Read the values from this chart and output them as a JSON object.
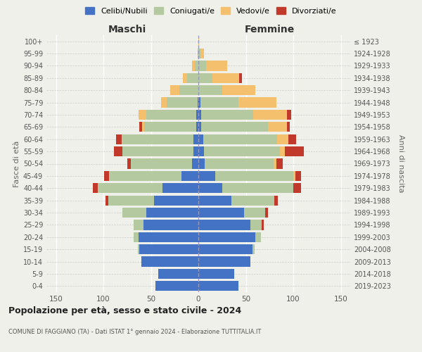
{
  "age_groups": [
    "0-4",
    "5-9",
    "10-14",
    "15-19",
    "20-24",
    "25-29",
    "30-34",
    "35-39",
    "40-44",
    "45-49",
    "50-54",
    "55-59",
    "60-64",
    "65-69",
    "70-74",
    "75-79",
    "80-84",
    "85-89",
    "90-94",
    "95-99",
    "100+"
  ],
  "birth_years": [
    "2019-2023",
    "2014-2018",
    "2009-2013",
    "2004-2008",
    "1999-2003",
    "1994-1998",
    "1989-1993",
    "1984-1988",
    "1979-1983",
    "1974-1978",
    "1969-1973",
    "1964-1968",
    "1959-1963",
    "1954-1958",
    "1949-1953",
    "1944-1948",
    "1939-1943",
    "1934-1938",
    "1929-1933",
    "1924-1928",
    "≤ 1923"
  ],
  "male_celibi": [
    45,
    42,
    60,
    62,
    63,
    58,
    55,
    47,
    38,
    18,
    7,
    5,
    5,
    2,
    2,
    1,
    0,
    0,
    0,
    0,
    0
  ],
  "male_coniugati": [
    0,
    0,
    0,
    2,
    5,
    10,
    25,
    48,
    68,
    76,
    64,
    75,
    75,
    55,
    53,
    32,
    20,
    12,
    4,
    1,
    0
  ],
  "male_vedovi": [
    0,
    0,
    0,
    0,
    0,
    0,
    0,
    0,
    0,
    0,
    0,
    0,
    1,
    2,
    8,
    6,
    10,
    4,
    3,
    0,
    0
  ],
  "male_divorziati": [
    0,
    0,
    0,
    0,
    0,
    0,
    0,
    3,
    5,
    5,
    4,
    9,
    6,
    3,
    0,
    0,
    0,
    0,
    0,
    0,
    0
  ],
  "female_celibi": [
    42,
    38,
    55,
    57,
    60,
    55,
    48,
    35,
    25,
    18,
    7,
    6,
    5,
    3,
    3,
    2,
    0,
    0,
    0,
    0,
    0
  ],
  "female_coniugati": [
    0,
    0,
    0,
    2,
    6,
    12,
    22,
    45,
    75,
    82,
    72,
    80,
    78,
    70,
    55,
    40,
    25,
    15,
    8,
    2,
    0
  ],
  "female_vedovi": [
    0,
    0,
    0,
    0,
    0,
    0,
    0,
    0,
    0,
    2,
    3,
    5,
    12,
    20,
    35,
    40,
    35,
    28,
    22,
    4,
    1
  ],
  "female_divorziati": [
    0,
    0,
    0,
    0,
    0,
    2,
    3,
    4,
    8,
    6,
    7,
    20,
    8,
    3,
    5,
    0,
    0,
    3,
    0,
    0,
    0
  ],
  "colors": {
    "celibi": "#4472c4",
    "coniugati": "#b5c9a0",
    "vedovi": "#f5c06e",
    "divorziati": "#c0392b"
  },
  "title": "Popolazione per età, sesso e stato civile - 2024",
  "subtitle": "COMUNE DI FAGGIANO (TA) - Dati ISTAT 1° gennaio 2024 - Elaborazione TUTTITALIA.IT",
  "label_maschi": "Maschi",
  "label_femmine": "Femmine",
  "ylabel_left": "Fasce di età",
  "ylabel_right": "Anni di nascita",
  "legend_labels": [
    "Celibi/Nubili",
    "Coniugati/e",
    "Vedovi/e",
    "Divorziati/e"
  ],
  "xlim": 160,
  "background_color": "#f0f0eb"
}
